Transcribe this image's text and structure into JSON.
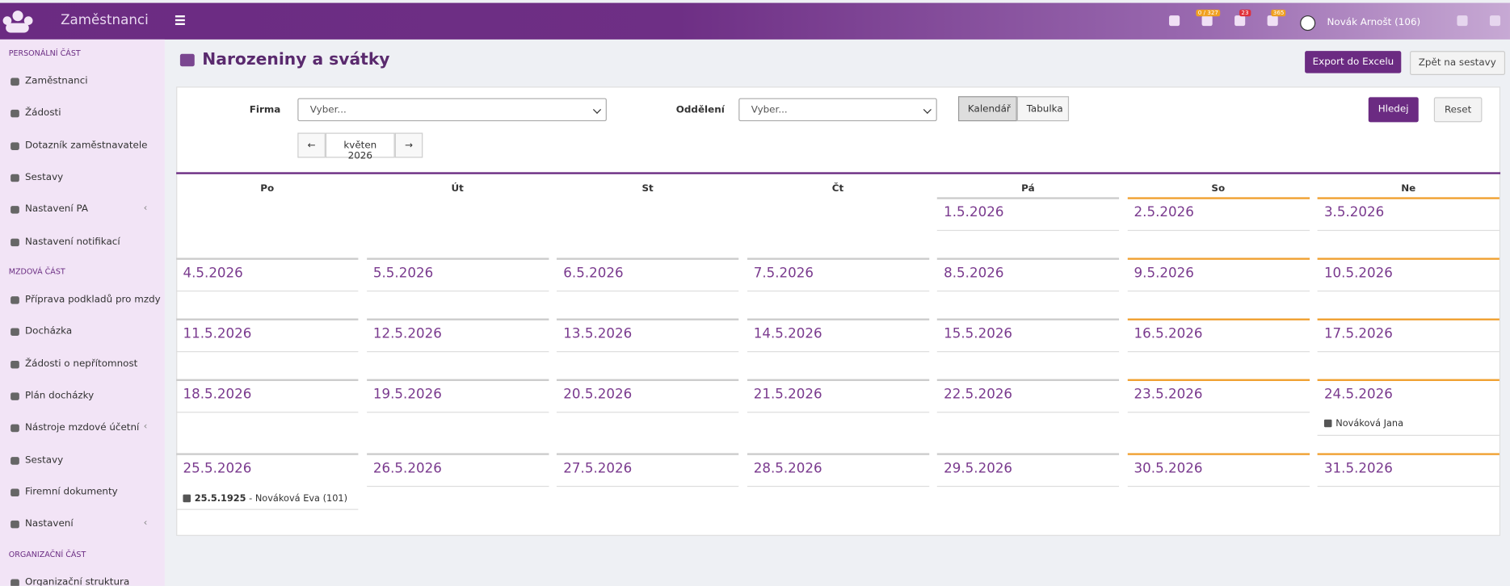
{
  "header": {
    "app_name": "Zaměstnanci",
    "badges": [
      "0 / 327",
      "23",
      "365"
    ],
    "user": "Novák Arnošt (106)"
  },
  "sidebar": {
    "sections": [
      {
        "title": "PERSONÁLNÍ ČÁST",
        "items": [
          "Zaměstnanci",
          "Žádosti",
          "Dotazník zaměstnavatele",
          "Sestavy",
          "Nastavení PA",
          "Nastavení notifikací"
        ]
      },
      {
        "title": "MZDOVÁ ČÁST",
        "items": [
          "Příprava podkladů pro mzdy",
          "Docházka",
          "Žádosti o nepřítomnost",
          "Plán docházky",
          "Nástroje mzdové účetní",
          "Sestavy",
          "Firemní dokumenty",
          "Nastavení"
        ]
      },
      {
        "title": "ORGANIZAČNÍ ČÁST",
        "items": [
          "Organizační struktura"
        ]
      }
    ]
  },
  "page": {
    "title": "Narozeniny a svátky",
    "export_button": "Export do Excelu",
    "back_button": "Zpět na sestavy"
  },
  "filters": {
    "company_label": "Firma",
    "company_placeholder": "Vyber...",
    "department_label": "Oddělení",
    "department_placeholder": "Vyber...",
    "view_options": [
      "Kalendář",
      "Tabulka"
    ],
    "search_button": "Hledej",
    "reset_button": "Reset",
    "month": "květen 2026"
  },
  "calendar": {
    "weekdays": [
      "Po",
      "Út",
      "St",
      "Čt",
      "Pá",
      "So",
      "Ne"
    ],
    "weeks": [
      [
        null,
        null,
        null,
        null,
        "1.5.2026",
        "2.5.2026",
        "3.5.2026"
      ],
      [
        "4.5.2026",
        "5.5.2026",
        "6.5.2026",
        "7.5.2026",
        "8.5.2026",
        "9.5.2026",
        "10.5.2026"
      ],
      [
        "11.5.2026",
        "12.5.2026",
        "13.5.2026",
        "14.5.2026",
        "15.5.2026",
        "16.5.2026",
        "17.5.2026"
      ],
      [
        "18.5.2026",
        "19.5.2026",
        "20.5.2026",
        "21.5.2026",
        "22.5.2026",
        "23.5.2026",
        "24.5.2026"
      ],
      [
        "25.5.2026",
        "26.5.2026",
        "27.5.2026",
        "28.5.2026",
        "29.5.2026",
        "30.5.2026",
        "31.5.2026"
      ]
    ],
    "events": [
      {
        "week": 3,
        "day": 6,
        "kind": "nameday",
        "text": "Nováková Jana"
      },
      {
        "week": 4,
        "day": 0,
        "kind": "birthday",
        "date": "25.5.1925",
        "text": " - Nováková Eva (101)"
      }
    ]
  }
}
